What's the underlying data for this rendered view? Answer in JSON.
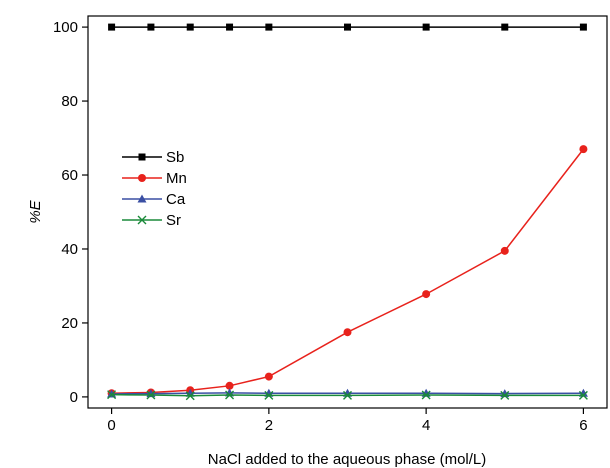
{
  "chart_data": {
    "type": "line",
    "xlabel": "NaCl added to the aqueous phase (mol/L)",
    "ylabel": "%E",
    "xlim": [
      -0.3,
      6.3
    ],
    "ylim": [
      -3,
      103
    ],
    "xticks": [
      0,
      2,
      4,
      6
    ],
    "yticks": [
      0,
      20,
      40,
      60,
      80,
      100
    ],
    "grid": false,
    "legend_position": "left-middle",
    "x": [
      0,
      0.5,
      1,
      1.5,
      2,
      3,
      4,
      5,
      6
    ],
    "series": [
      {
        "name": "Sb",
        "color": "#000000",
        "marker": "square",
        "values": [
          100,
          100,
          100,
          100,
          100,
          100,
          100,
          100,
          100
        ]
      },
      {
        "name": "Mn",
        "color": "#e8221c",
        "marker": "circle",
        "values": [
          1.0,
          1.2,
          1.8,
          3.0,
          5.5,
          17.5,
          27.8,
          39.5,
          67.0
        ]
      },
      {
        "name": "Ca",
        "color": "#3a4fa3",
        "marker": "triangle",
        "values": [
          0.8,
          0.9,
          1.0,
          1.1,
          1.0,
          1.0,
          1.0,
          0.9,
          1.0
        ]
      },
      {
        "name": "Sr",
        "color": "#1a8a3a",
        "marker": "x",
        "values": [
          0.6,
          0.5,
          0.3,
          0.5,
          0.4,
          0.4,
          0.5,
          0.4,
          0.4
        ]
      }
    ]
  }
}
